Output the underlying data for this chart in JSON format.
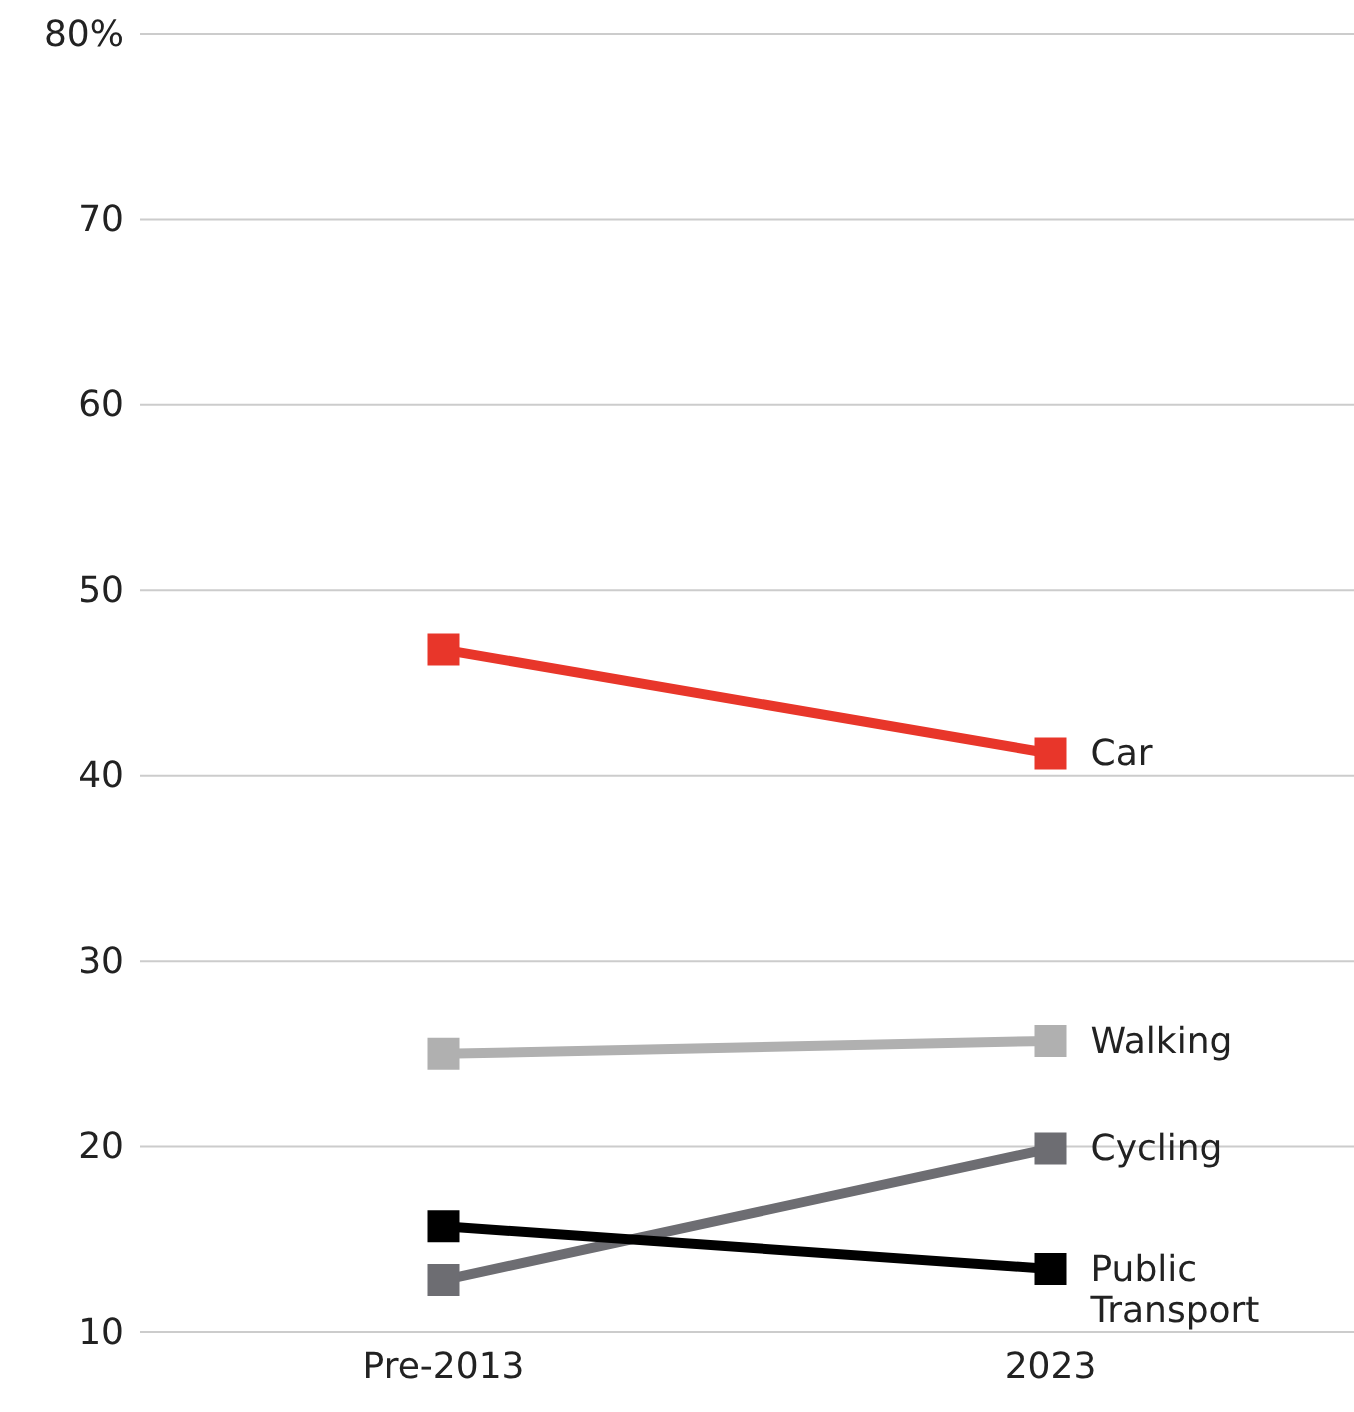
{
  "chart_data": {
    "type": "line",
    "categories": [
      "Pre-2013",
      "2023"
    ],
    "series": [
      {
        "name": "Car",
        "color": "#e8362a",
        "values": [
          46.8,
          41.2
        ]
      },
      {
        "name": "Walking",
        "color": "#b0b0b0",
        "values": [
          25.0,
          25.7
        ]
      },
      {
        "name": "Cycling",
        "color": "#6d6d72",
        "values": [
          12.8,
          19.9
        ]
      },
      {
        "name": "Public Transport",
        "color": "#000000",
        "values": [
          15.7,
          13.4
        ]
      }
    ],
    "ylim": [
      10,
      80
    ],
    "yticks": [
      10,
      20,
      30,
      40,
      50,
      60,
      70,
      {
        "value": 80,
        "label": "80%"
      }
    ],
    "grid": "y",
    "legend": false,
    "marker": "square",
    "line_style": "solid"
  }
}
